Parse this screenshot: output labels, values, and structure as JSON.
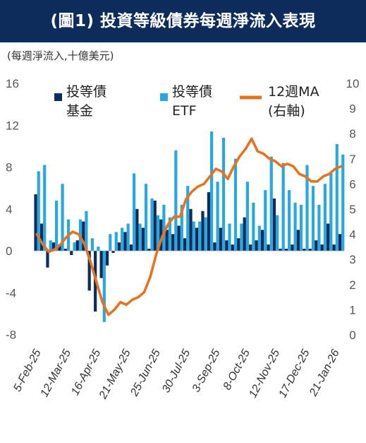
{
  "title": "(圖1) 投資等級債券每週淨流入表現",
  "subtitle": "(每週淨流入,十億美元)",
  "colors": {
    "fund": "#0d2c5c",
    "etf": "#29a8e0",
    "ma": "#e8731f",
    "title_bg": "#0d2c5c"
  },
  "legend": {
    "fund_line1": "投等債",
    "fund_line2": "基金",
    "etf_line1": "投等債",
    "etf_line2": "ETF",
    "ma_line1": "12週MA",
    "ma_line2": "(右軸)"
  },
  "left_ticks": [
    "16",
    "12",
    "8",
    "4",
    "0",
    "-4",
    "-8"
  ],
  "right_ticks": [
    "10",
    "9",
    "8",
    "7",
    "6",
    "5",
    "4",
    "3",
    "2",
    "1",
    "0"
  ],
  "x_ticks": [
    "5-Feb-25",
    "12-Mar-25",
    "16-Apr-25",
    "21-May-25",
    "25-Jun-25",
    "30-Jul-25",
    "3-Sep-25",
    "8-Oct-25",
    "12-Nov-25",
    "17-Dec-25",
    "21-Jan-26"
  ],
  "chart_data": {
    "type": "bar",
    "ylim_left": [
      -8,
      16
    ],
    "ylim_right": [
      0,
      10
    ],
    "series": [
      {
        "name": "投等債基金",
        "axis": "left",
        "values": [
          5.4,
          2.6,
          -1.6,
          0.8,
          0.6,
          0.2,
          -0.4,
          1.0,
          2.8,
          -3.8,
          -5.8,
          -2.6,
          -1.4,
          -0.2,
          0.8,
          1.8,
          0.6,
          4.0,
          2.2,
          0.2,
          4.8,
          3.0,
          2.0,
          1.6,
          2.4,
          1.2,
          4.0,
          2.2,
          3.8,
          5.6,
          0.8,
          2.2,
          1.0,
          0.6,
          1.2,
          3.2,
          0.6,
          1.0,
          2.0,
          0.6,
          5.0,
          0.2,
          0.2,
          0.6,
          2.0,
          0.2,
          0.2,
          1.0,
          0.6,
          2.6,
          0.6,
          1.6
        ]
      },
      {
        "name": "投等債ETF",
        "axis": "left",
        "values": [
          7.6,
          8.2,
          1.0,
          4.8,
          6.4,
          3.0,
          0.8,
          3.0,
          3.8,
          1.2,
          0.4,
          -6.8,
          1.6,
          1.8,
          2.2,
          2.6,
          7.4,
          2.6,
          6.4,
          5.0,
          3.4,
          4.4,
          3.2,
          9.6,
          4.4,
          6.2,
          2.8,
          2.8,
          3.2,
          11.4,
          6.6,
          10.8,
          2.6,
          8.8,
          2.6,
          6.6,
          4.6,
          2.4,
          5.8,
          9.0,
          3.4,
          8.4,
          5.8,
          4.6,
          4.4,
          8.2,
          6.2,
          4.4,
          6.4,
          7.4,
          10.2,
          9.2
        ]
      },
      {
        "name": "12週MA",
        "axis": "right",
        "values": [
          4.0,
          3.6,
          3.3,
          3.4,
          3.6,
          3.9,
          4.1,
          4.0,
          3.6,
          2.9,
          2.1,
          1.3,
          0.8,
          1.0,
          1.3,
          1.2,
          1.4,
          1.5,
          1.7,
          2.3,
          3.2,
          3.9,
          4.4,
          4.7,
          4.7,
          5.4,
          5.7,
          5.9,
          6.0,
          6.3,
          6.6,
          6.5,
          6.2,
          6.7,
          7.1,
          7.4,
          7.8,
          7.3,
          7.2,
          7.0,
          6.9,
          6.7,
          6.8,
          6.7,
          6.4,
          6.3,
          6.1,
          6.1,
          6.3,
          6.4,
          6.6,
          6.7
        ]
      }
    ]
  }
}
